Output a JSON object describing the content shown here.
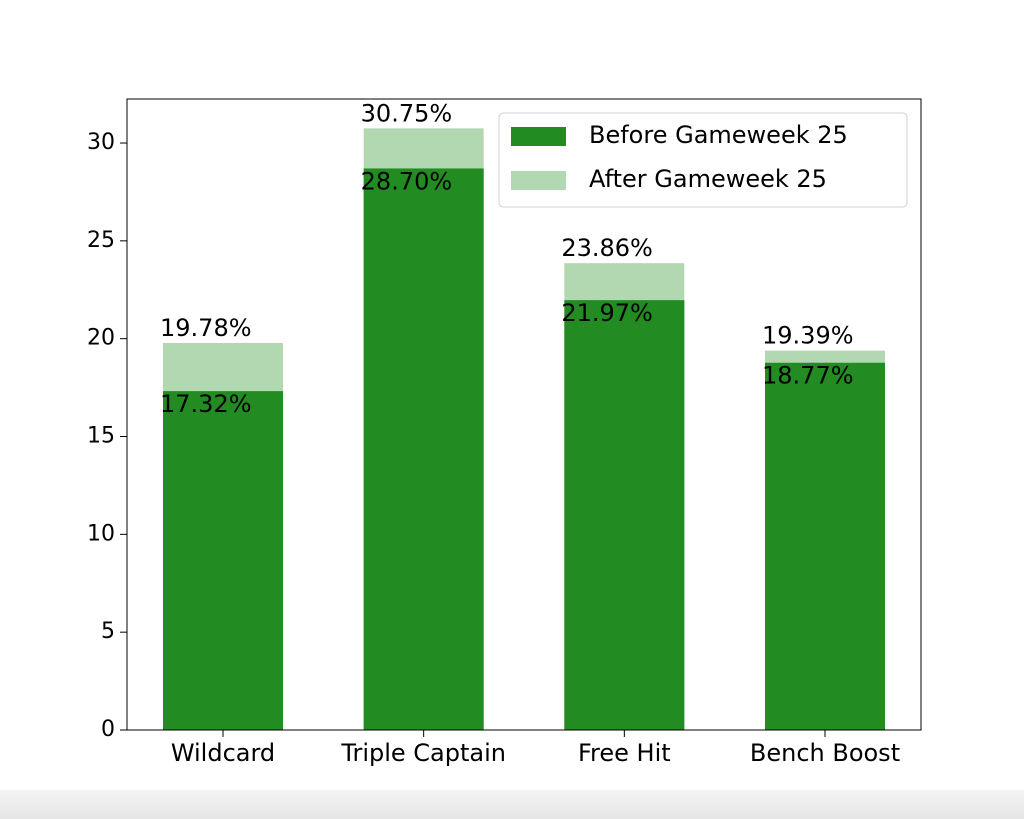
{
  "chart_data": {
    "type": "bar",
    "overlay": true,
    "categories": [
      "Wildcard",
      "Triple Captain",
      "Free Hit",
      "Bench Boost"
    ],
    "series": [
      {
        "name": "Before Gameweek 25",
        "color": "#228b22",
        "values": [
          17.32,
          28.7,
          21.97,
          18.77
        ],
        "value_labels": [
          "17.32%",
          "28.70%",
          "21.97%",
          "18.77%"
        ]
      },
      {
        "name": "After Gameweek 25",
        "color": "#b2d8b2",
        "values": [
          19.78,
          30.75,
          23.86,
          19.39
        ],
        "value_labels": [
          "19.78%",
          "30.75%",
          "23.86%",
          "19.39%"
        ]
      }
    ],
    "ylim": [
      0,
      32.25
    ],
    "yticks": [
      0,
      5,
      10,
      15,
      20,
      25,
      30
    ],
    "grid": false,
    "legend": "upper right"
  }
}
